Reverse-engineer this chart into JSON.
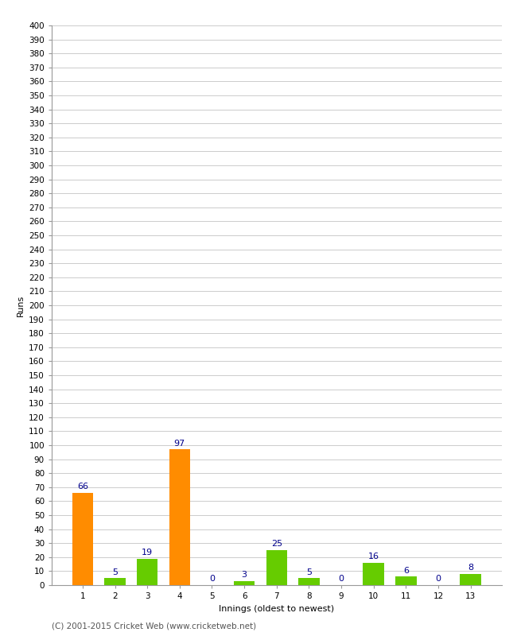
{
  "xlabel": "Innings (oldest to newest)",
  "ylabel": "Runs",
  "categories": [
    "1",
    "2",
    "3",
    "4",
    "5",
    "6",
    "7",
    "8",
    "9",
    "10",
    "11",
    "12",
    "13"
  ],
  "values": [
    66,
    5,
    19,
    97,
    0,
    3,
    25,
    5,
    0,
    16,
    6,
    0,
    8
  ],
  "bar_colors": [
    "#FF8C00",
    "#66CC00",
    "#66CC00",
    "#FF8C00",
    "#66CC00",
    "#66CC00",
    "#66CC00",
    "#66CC00",
    "#66CC00",
    "#66CC00",
    "#66CC00",
    "#66CC00",
    "#66CC00"
  ],
  "ylim": [
    0,
    400
  ],
  "ytick_step": 10,
  "label_color": "#00008B",
  "background_color": "#FFFFFF",
  "grid_color": "#CCCCCC",
  "footer": "(C) 2001-2015 Cricket Web (www.cricketweb.net)",
  "tick_fontsize": 7.5,
  "label_fontsize": 8,
  "footer_fontsize": 7.5
}
